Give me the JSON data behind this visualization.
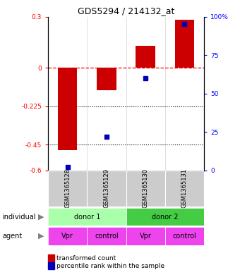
{
  "title": "GDS5294 / 214132_at",
  "categories": [
    "GSM1365128",
    "GSM1365129",
    "GSM1365130",
    "GSM1365131"
  ],
  "bar_values": [
    -0.48,
    -0.13,
    0.13,
    0.28
  ],
  "percentile_values": [
    2,
    22,
    60,
    95
  ],
  "ylim_left": [
    -0.6,
    0.3
  ],
  "ylim_right": [
    0,
    100
  ],
  "yticks_left": [
    0.3,
    0,
    -0.225,
    -0.45,
    -0.6
  ],
  "yticks_right": [
    100,
    75,
    50,
    25,
    0
  ],
  "bar_color": "#cc0000",
  "dot_color": "#0000bb",
  "dotted_lines": [
    -0.225,
    -0.45
  ],
  "donor1_label": "donor 1",
  "donor2_label": "donor 2",
  "donor1_color": "#aaffaa",
  "donor2_color": "#44cc44",
  "agent_labels": [
    "Vpr",
    "control",
    "Vpr",
    "control"
  ],
  "agent_color": "#ee44ee",
  "individual_label": "individual",
  "agent_row_label": "agent",
  "legend_bar_label": "transformed count",
  "legend_dot_label": "percentile rank within the sample",
  "sample_bg_color": "#cccccc",
  "fig_bg_color": "#ffffff"
}
